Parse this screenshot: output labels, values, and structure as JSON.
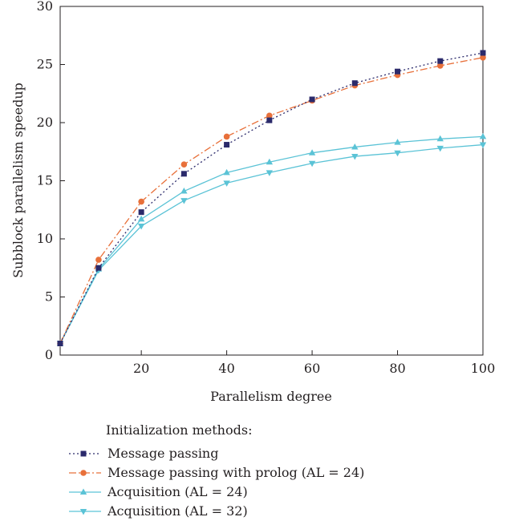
{
  "chart_data": {
    "type": "line",
    "xlabel": "Parallelism degree",
    "ylabel": "Subblock parallelism speedup",
    "xlim": [
      1,
      100
    ],
    "ylim": [
      0,
      30
    ],
    "xticks": [
      20,
      40,
      60,
      80,
      100
    ],
    "yticks": [
      0,
      5,
      10,
      15,
      20,
      25,
      30
    ],
    "legend_title": "Initialization methods:",
    "legend_position": "bottom",
    "grid": false,
    "x": [
      1,
      10,
      20,
      30,
      40,
      50,
      60,
      70,
      80,
      90,
      100
    ],
    "series": [
      {
        "name": "Message passing",
        "color": "#2b2a6b",
        "marker": "square",
        "line": "dotted",
        "values": [
          1.0,
          7.5,
          12.3,
          15.6,
          18.1,
          20.2,
          22.0,
          23.4,
          24.4,
          25.3,
          26.0
        ]
      },
      {
        "name": "Message passing with prolog (AL = 24)",
        "color": "#e8703a",
        "marker": "circle",
        "line": "dashdot",
        "values": [
          1.0,
          8.2,
          13.2,
          16.4,
          18.8,
          20.6,
          21.9,
          23.2,
          24.1,
          24.9,
          25.6
        ]
      },
      {
        "name": "Acquisition (AL = 24)",
        "color": "#5bc3d6",
        "marker": "triangle-up",
        "line": "solid",
        "values": [
          1.0,
          7.4,
          11.7,
          14.1,
          15.7,
          16.6,
          17.4,
          17.9,
          18.3,
          18.6,
          18.8
        ]
      },
      {
        "name": "Acquisition (AL = 32)",
        "color": "#5bc3d6",
        "marker": "triangle-down",
        "line": "solid",
        "values": [
          1.0,
          7.3,
          11.1,
          13.3,
          14.8,
          15.7,
          16.5,
          17.1,
          17.4,
          17.8,
          18.1
        ]
      }
    ]
  }
}
